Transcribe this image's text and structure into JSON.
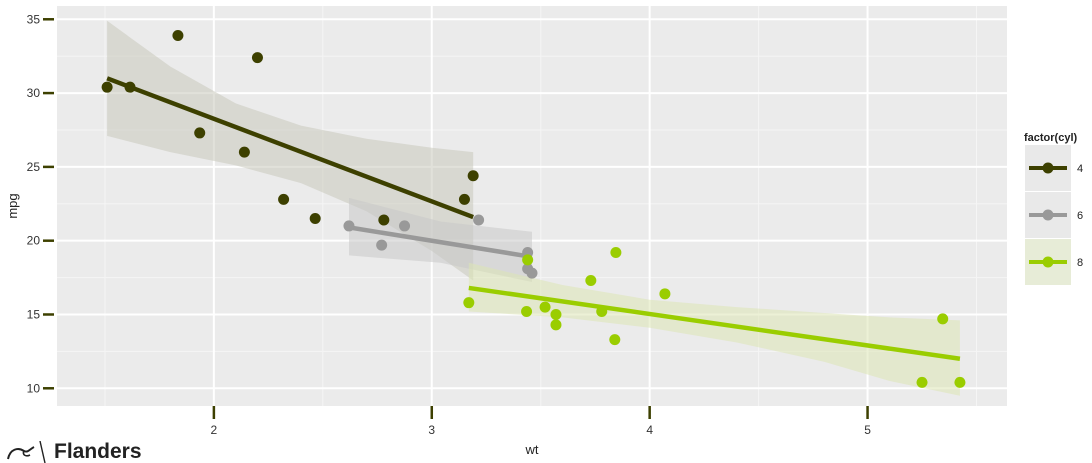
{
  "chart_data": {
    "type": "scatter",
    "xlabel": "wt",
    "ylabel": "mpg",
    "xlim": [
      1.28,
      5.64
    ],
    "ylim": [
      8.8,
      35.9
    ],
    "x_ticks": [
      2,
      3,
      4,
      5
    ],
    "y_ticks": [
      10,
      15,
      20,
      25,
      30,
      35
    ],
    "grid": true,
    "legend": {
      "title": "factor(cyl)",
      "placement": "right"
    },
    "series": [
      {
        "name": "4",
        "color": "#3d4000",
        "ribbon_color": "#c8c8bc",
        "points": [
          [
            1.51,
            30.4
          ],
          [
            1.615,
            30.4
          ],
          [
            1.835,
            33.9
          ],
          [
            1.935,
            27.3
          ],
          [
            2.14,
            26.0
          ],
          [
            2.2,
            32.4
          ],
          [
            2.32,
            22.8
          ],
          [
            2.465,
            21.5
          ],
          [
            2.78,
            21.4
          ],
          [
            3.15,
            22.8
          ],
          [
            3.19,
            24.4
          ]
        ],
        "fit": {
          "x": [
            1.51,
            3.19
          ],
          "y": [
            31.0,
            21.6
          ]
        },
        "band": {
          "x": [
            1.51,
            1.8,
            2.1,
            2.4,
            2.7,
            3.0,
            3.19
          ],
          "upper": [
            34.9,
            31.8,
            29.3,
            27.8,
            26.9,
            26.3,
            26.0
          ],
          "lower": [
            27.1,
            26.0,
            25.1,
            23.9,
            22.0,
            19.3,
            17.3
          ]
        }
      },
      {
        "name": "6",
        "color": "#999999",
        "ribbon_color": "#c9c9c9",
        "points": [
          [
            2.62,
            21.0
          ],
          [
            2.77,
            19.7
          ],
          [
            2.875,
            21.0
          ],
          [
            3.215,
            21.4
          ],
          [
            3.44,
            18.1
          ],
          [
            3.44,
            19.2
          ],
          [
            3.46,
            17.8
          ]
        ],
        "fit": {
          "x": [
            2.62,
            3.46
          ],
          "y": [
            20.9,
            18.9
          ]
        },
        "band": {
          "x": [
            2.62,
            3.04,
            3.46
          ],
          "upper": [
            22.9,
            21.3,
            20.6
          ],
          "lower": [
            19.0,
            18.5,
            17.2
          ]
        }
      },
      {
        "name": "8",
        "color": "#9acd00",
        "ribbon_color": "#dce6b4",
        "points": [
          [
            3.17,
            15.8
          ],
          [
            3.435,
            15.2
          ],
          [
            3.44,
            18.7
          ],
          [
            3.52,
            15.5
          ],
          [
            3.57,
            14.3
          ],
          [
            3.57,
            15.0
          ],
          [
            3.73,
            17.3
          ],
          [
            3.78,
            15.2
          ],
          [
            3.84,
            13.3
          ],
          [
            3.845,
            19.2
          ],
          [
            4.07,
            16.4
          ],
          [
            5.25,
            10.4
          ],
          [
            5.345,
            14.7
          ],
          [
            5.424,
            10.4
          ]
        ],
        "fit": {
          "x": [
            3.17,
            5.424
          ],
          "y": [
            16.8,
            12.0
          ]
        },
        "band": {
          "x": [
            3.17,
            3.6,
            4.0,
            4.4,
            4.8,
            5.1,
            5.424
          ],
          "upper": [
            18.5,
            17.0,
            16.0,
            15.5,
            15.1,
            14.8,
            14.6
          ],
          "lower": [
            15.2,
            14.8,
            14.1,
            13.1,
            11.8,
            10.5,
            9.5
          ]
        }
      }
    ]
  },
  "branding": {
    "text": "Flanders",
    "logo_icon": "flanders-lion-icon"
  }
}
